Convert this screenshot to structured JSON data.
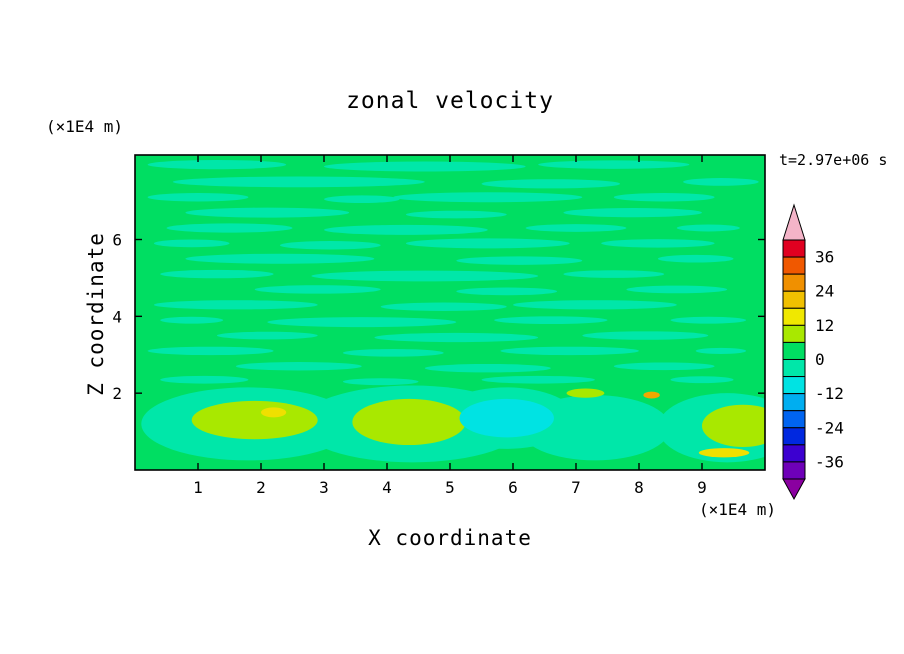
{
  "chart_data": {
    "type": "filled-contour",
    "title": "zonal velocity",
    "xlabel": "X coordinate",
    "ylabel": "Z coordinate",
    "x_unit_label": "(×1E4 m)",
    "y_unit_label": "(×1E4 m)",
    "time_label": "t=2.97e+06 s",
    "xlim": [
      0,
      10
    ],
    "ylim": [
      0,
      8.2
    ],
    "x_ticks": [
      1,
      2,
      3,
      4,
      5,
      6,
      7,
      8,
      9
    ],
    "y_ticks": [
      2,
      4,
      6
    ],
    "grid": false,
    "legend_position": "colorbar-right",
    "colorbar": {
      "min": -42,
      "max": 42,
      "step": 6,
      "tick_labels": [
        36,
        24,
        12,
        0,
        -12,
        -24,
        -36
      ],
      "colors_top_to_bottom": [
        "#E00020",
        "#F05800",
        "#F09000",
        "#F0C000",
        "#F0E800",
        "#A9E800",
        "#00DE62",
        "#00E7A9",
        "#00E3E3",
        "#00AEF0",
        "#0064F0",
        "#0028E0",
        "#3C00D0",
        "#6E00B8"
      ],
      "over_color": "#F4B4C8",
      "under_color": "#8A00A0"
    },
    "field": {
      "description": "Near-zero zonal velocity field: green background (0 to 6) laced with thin aquamarine streaks (-6 to 0); stronger alternating features below z=2 including chartreuse positive blobs, a cyan negative patch, small yellow/orange extrema.",
      "bands": {
        "green": "#00DE62",
        "mint": "#00E7A9",
        "cyan": "#00E3E3",
        "chartreuse": "#A9E800",
        "yellow": "#EFE000",
        "orange": "#F0A800"
      },
      "background_band": "green",
      "streak_band": "mint",
      "streaks": [
        {
          "x": 1.3,
          "z": 7.95,
          "rx": 1.1,
          "rz": 0.12
        },
        {
          "x": 4.6,
          "z": 7.9,
          "rx": 1.6,
          "rz": 0.13
        },
        {
          "x": 7.6,
          "z": 7.95,
          "rx": 1.2,
          "rz": 0.11
        },
        {
          "x": 2.6,
          "z": 7.5,
          "rx": 2.0,
          "rz": 0.14
        },
        {
          "x": 6.6,
          "z": 7.45,
          "rx": 1.1,
          "rz": 0.12
        },
        {
          "x": 9.3,
          "z": 7.5,
          "rx": 0.6,
          "rz": 0.1
        },
        {
          "x": 1.0,
          "z": 7.1,
          "rx": 0.8,
          "rz": 0.11
        },
        {
          "x": 3.6,
          "z": 7.05,
          "rx": 0.6,
          "rz": 0.1
        },
        {
          "x": 5.6,
          "z": 7.1,
          "rx": 1.5,
          "rz": 0.13
        },
        {
          "x": 8.4,
          "z": 7.1,
          "rx": 0.8,
          "rz": 0.11
        },
        {
          "x": 2.1,
          "z": 6.7,
          "rx": 1.3,
          "rz": 0.13
        },
        {
          "x": 5.1,
          "z": 6.65,
          "rx": 0.8,
          "rz": 0.1
        },
        {
          "x": 7.9,
          "z": 6.7,
          "rx": 1.1,
          "rz": 0.12
        },
        {
          "x": 1.5,
          "z": 6.3,
          "rx": 1.0,
          "rz": 0.12
        },
        {
          "x": 4.3,
          "z": 6.25,
          "rx": 1.3,
          "rz": 0.13
        },
        {
          "x": 7.0,
          "z": 6.3,
          "rx": 0.8,
          "rz": 0.1
        },
        {
          "x": 9.1,
          "z": 6.3,
          "rx": 0.5,
          "rz": 0.09
        },
        {
          "x": 0.9,
          "z": 5.9,
          "rx": 0.6,
          "rz": 0.1
        },
        {
          "x": 3.1,
          "z": 5.85,
          "rx": 0.8,
          "rz": 0.11
        },
        {
          "x": 5.6,
          "z": 5.9,
          "rx": 1.3,
          "rz": 0.13
        },
        {
          "x": 8.3,
          "z": 5.9,
          "rx": 0.9,
          "rz": 0.11
        },
        {
          "x": 2.3,
          "z": 5.5,
          "rx": 1.5,
          "rz": 0.13
        },
        {
          "x": 6.1,
          "z": 5.45,
          "rx": 1.0,
          "rz": 0.11
        },
        {
          "x": 8.9,
          "z": 5.5,
          "rx": 0.6,
          "rz": 0.1
        },
        {
          "x": 1.3,
          "z": 5.1,
          "rx": 0.9,
          "rz": 0.11
        },
        {
          "x": 4.6,
          "z": 5.05,
          "rx": 1.8,
          "rz": 0.14
        },
        {
          "x": 7.6,
          "z": 5.1,
          "rx": 0.8,
          "rz": 0.1
        },
        {
          "x": 2.9,
          "z": 4.7,
          "rx": 1.0,
          "rz": 0.11
        },
        {
          "x": 5.9,
          "z": 4.65,
          "rx": 0.8,
          "rz": 0.1
        },
        {
          "x": 8.6,
          "z": 4.7,
          "rx": 0.8,
          "rz": 0.1
        },
        {
          "x": 1.6,
          "z": 4.3,
          "rx": 1.3,
          "rz": 0.12
        },
        {
          "x": 4.9,
          "z": 4.25,
          "rx": 1.0,
          "rz": 0.11
        },
        {
          "x": 7.3,
          "z": 4.3,
          "rx": 1.3,
          "rz": 0.12
        },
        {
          "x": 0.9,
          "z": 3.9,
          "rx": 0.5,
          "rz": 0.09
        },
        {
          "x": 3.6,
          "z": 3.85,
          "rx": 1.5,
          "rz": 0.13
        },
        {
          "x": 6.6,
          "z": 3.9,
          "rx": 0.9,
          "rz": 0.1
        },
        {
          "x": 9.1,
          "z": 3.9,
          "rx": 0.6,
          "rz": 0.09
        },
        {
          "x": 2.1,
          "z": 3.5,
          "rx": 0.8,
          "rz": 0.1
        },
        {
          "x": 5.1,
          "z": 3.45,
          "rx": 1.3,
          "rz": 0.12
        },
        {
          "x": 8.1,
          "z": 3.5,
          "rx": 1.0,
          "rz": 0.11
        },
        {
          "x": 1.2,
          "z": 3.1,
          "rx": 1.0,
          "rz": 0.11
        },
        {
          "x": 4.1,
          "z": 3.05,
          "rx": 0.8,
          "rz": 0.1
        },
        {
          "x": 6.9,
          "z": 3.1,
          "rx": 1.1,
          "rz": 0.11
        },
        {
          "x": 9.3,
          "z": 3.1,
          "rx": 0.4,
          "rz": 0.08
        },
        {
          "x": 2.6,
          "z": 2.7,
          "rx": 1.0,
          "rz": 0.11
        },
        {
          "x": 5.6,
          "z": 2.65,
          "rx": 1.0,
          "rz": 0.11
        },
        {
          "x": 8.4,
          "z": 2.7,
          "rx": 0.8,
          "rz": 0.1
        },
        {
          "x": 1.1,
          "z": 2.35,
          "rx": 0.7,
          "rz": 0.1
        },
        {
          "x": 3.9,
          "z": 2.3,
          "rx": 0.6,
          "rz": 0.09
        },
        {
          "x": 6.4,
          "z": 2.35,
          "rx": 0.9,
          "rz": 0.1
        },
        {
          "x": 9.0,
          "z": 2.35,
          "rx": 0.5,
          "rz": 0.09
        }
      ],
      "features": [
        {
          "band": "mint",
          "x": 1.8,
          "z": 1.2,
          "rx": 1.7,
          "rz": 0.95
        },
        {
          "band": "mint",
          "x": 4.4,
          "z": 1.2,
          "rx": 1.8,
          "rz": 1.0
        },
        {
          "band": "mint",
          "x": 5.9,
          "z": 1.35,
          "rx": 1.1,
          "rz": 0.8
        },
        {
          "band": "mint",
          "x": 7.3,
          "z": 1.1,
          "rx": 1.2,
          "rz": 0.85
        },
        {
          "band": "mint",
          "x": 9.4,
          "z": 1.1,
          "rx": 1.1,
          "rz": 0.9
        },
        {
          "band": "chartreuse",
          "x": 1.9,
          "z": 1.3,
          "rx": 1.0,
          "rz": 0.5
        },
        {
          "band": "chartreuse",
          "x": 4.35,
          "z": 1.25,
          "rx": 0.9,
          "rz": 0.6
        },
        {
          "band": "chartreuse",
          "x": 9.65,
          "z": 1.15,
          "rx": 0.65,
          "rz": 0.55
        },
        {
          "band": "chartreuse",
          "x": 7.15,
          "z": 2.0,
          "rx": 0.3,
          "rz": 0.12
        },
        {
          "band": "cyan",
          "x": 5.9,
          "z": 1.35,
          "rx": 0.75,
          "rz": 0.5
        },
        {
          "band": "yellow",
          "x": 2.2,
          "z": 1.5,
          "rx": 0.2,
          "rz": 0.13
        },
        {
          "band": "yellow",
          "x": 9.35,
          "z": 0.45,
          "rx": 0.4,
          "rz": 0.12
        },
        {
          "band": "orange",
          "x": 8.2,
          "z": 1.95,
          "rx": 0.13,
          "rz": 0.09
        }
      ]
    }
  }
}
